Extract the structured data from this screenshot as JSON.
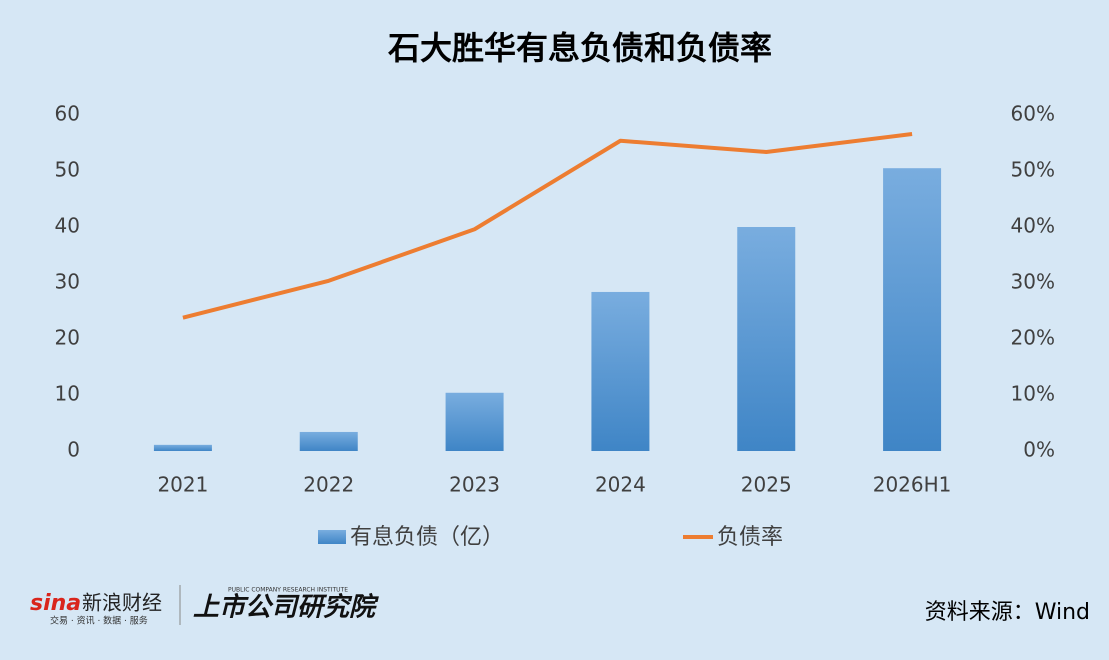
{
  "chart_data": {
    "type": "bar-line",
    "title": "石大胜华有息负债和负债率",
    "categories": [
      "2021",
      "2022",
      "2023",
      "2024",
      "2025",
      "2026H1"
    ],
    "series": [
      {
        "name": "有息负债（亿）",
        "type": "bar",
        "color": "#5b9bd5",
        "values": [
          1.1,
          3.4,
          10.4,
          28.4,
          40.0,
          50.5
        ]
      },
      {
        "name": "负债率",
        "type": "line",
        "axis": "y2",
        "color": "#ed7d31",
        "values": [
          23.8,
          30.4,
          39.6,
          55.4,
          53.4,
          56.6
        ]
      }
    ],
    "ylim": [
      0,
      60
    ],
    "yticks": [
      0,
      10,
      20,
      30,
      40,
      50,
      60
    ],
    "y2lim": [
      0,
      60
    ],
    "y2ticks": [
      {
        "value": 0,
        "label": "0%"
      },
      {
        "value": 10,
        "label": "10%"
      },
      {
        "value": 20,
        "label": "20%"
      },
      {
        "value": 30,
        "label": "30%"
      },
      {
        "value": 40,
        "label": "40%"
      },
      {
        "value": 50,
        "label": "50%"
      },
      {
        "value": 60,
        "label": "60%"
      }
    ],
    "grid": false,
    "legend": "bottom",
    "source": "资料来源：Wind",
    "logo": {
      "sina": "sina",
      "name": "新浪财经",
      "slogan": "交易 · 资讯 · 数据 · 服务",
      "institute": "上市公司研究院",
      "institute_en": "PUBLIC COMPANY RESEARCH INSTITUTE"
    }
  }
}
